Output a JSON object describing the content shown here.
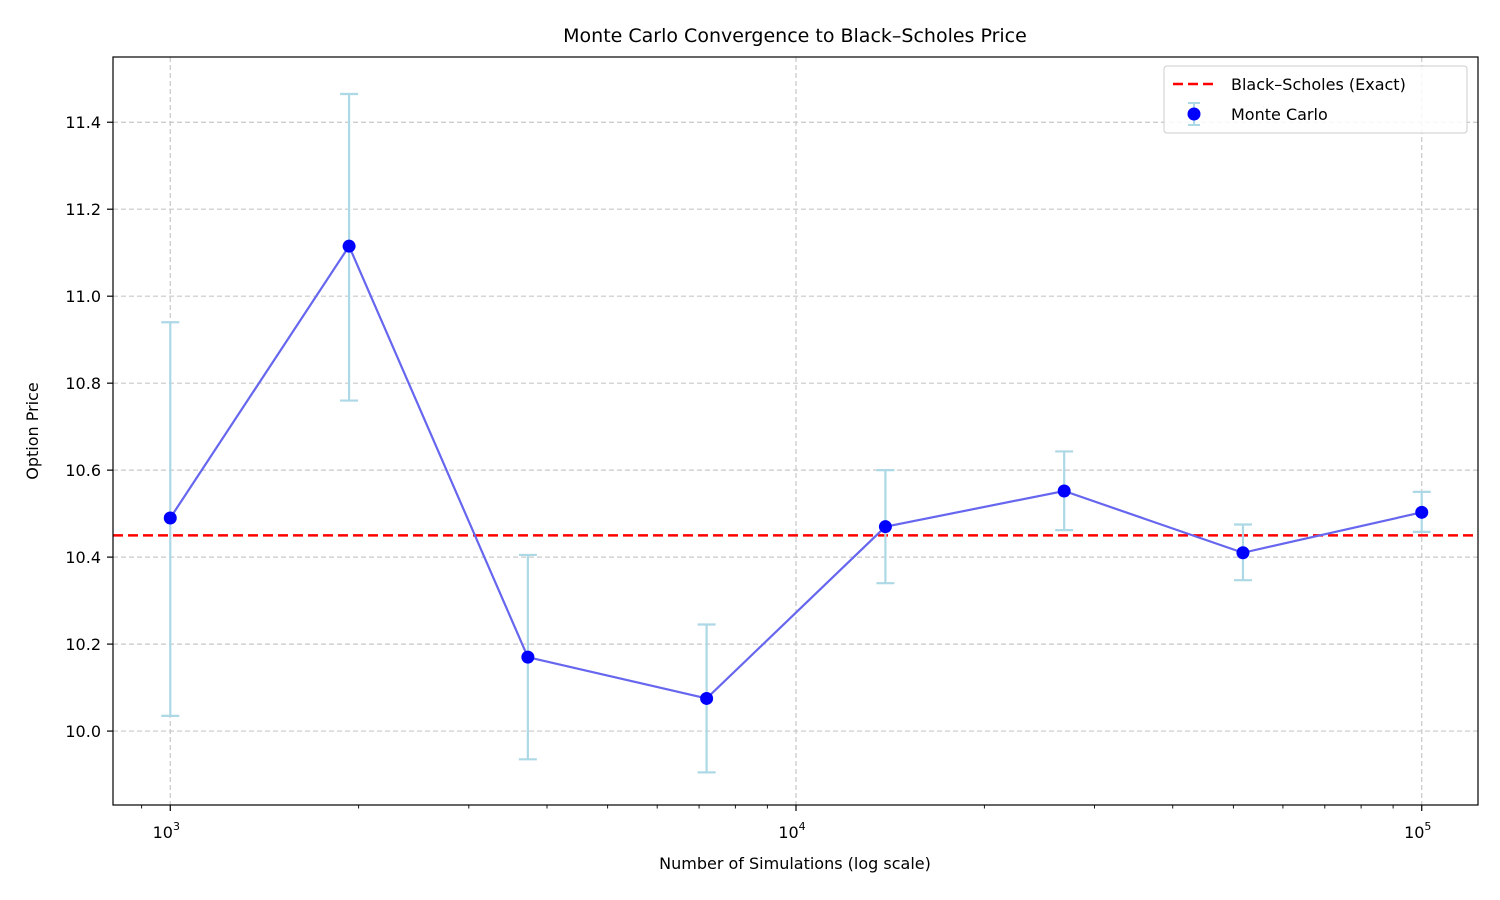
{
  "chart_data": {
    "type": "line",
    "title": "Monte Carlo Convergence to Black–Scholes Price",
    "xlabel": "Number of Simulations (log scale)",
    "ylabel": "Option Price",
    "x_scale": "log",
    "xlim": [
      810,
      123000
    ],
    "ylim": [
      9.83,
      11.55
    ],
    "x_ticks": [
      {
        "value": 1000,
        "base": "10",
        "exp": "3"
      },
      {
        "value": 10000,
        "base": "10",
        "exp": "4"
      },
      {
        "value": 100000,
        "base": "10",
        "exp": "5"
      }
    ],
    "y_ticks": [
      {
        "value": 10.0,
        "label": "10.0"
      },
      {
        "value": 10.2,
        "label": "10.2"
      },
      {
        "value": 10.4,
        "label": "10.4"
      },
      {
        "value": 10.6,
        "label": "10.6"
      },
      {
        "value": 10.8,
        "label": "10.8"
      },
      {
        "value": 11.0,
        "label": "11.0"
      },
      {
        "value": 11.2,
        "label": "11.2"
      },
      {
        "value": 11.4,
        "label": "11.4"
      }
    ],
    "grid": true,
    "legend_position": "top-right",
    "reference_line": {
      "name": "Black–Scholes (Exact)",
      "value": 10.45,
      "color": "#ff0000",
      "style": "dashed"
    },
    "series": [
      {
        "name": "Monte Carlo",
        "marker_color": "#0000ff",
        "line_color": "#6666ee",
        "errorbar_color": "#add8e6",
        "points": [
          {
            "x": 1000,
            "y": 10.49,
            "lo": 10.035,
            "hi": 10.94
          },
          {
            "x": 1931,
            "y": 11.115,
            "lo": 10.76,
            "hi": 11.465
          },
          {
            "x": 3728,
            "y": 10.17,
            "lo": 9.935,
            "hi": 10.405
          },
          {
            "x": 7197,
            "y": 10.075,
            "lo": 9.905,
            "hi": 10.245
          },
          {
            "x": 13895,
            "y": 10.47,
            "lo": 10.34,
            "hi": 10.6
          },
          {
            "x": 26827,
            "y": 10.552,
            "lo": 10.462,
            "hi": 10.643
          },
          {
            "x": 51795,
            "y": 10.41,
            "lo": 10.347,
            "hi": 10.475
          },
          {
            "x": 100000,
            "y": 10.503,
            "lo": 10.458,
            "hi": 10.55
          }
        ]
      }
    ]
  }
}
